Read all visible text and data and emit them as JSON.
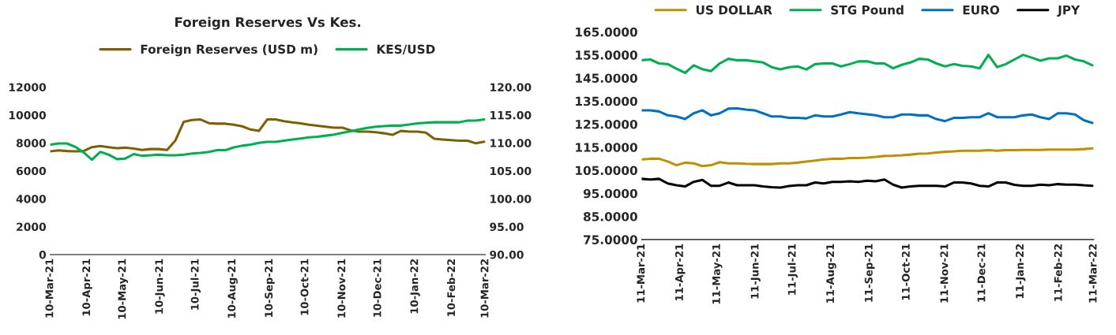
{
  "chart_data": [
    {
      "type": "line",
      "title": "Foreign Reserves Vs Kes.",
      "legend": "top",
      "grid": false,
      "line_style": "solid",
      "marker": "none",
      "x": [
        "2021-03-10",
        "2021-03-17",
        "2021-03-24",
        "2021-03-31",
        "2021-04-07",
        "2021-04-14",
        "2021-04-21",
        "2021-04-28",
        "2021-05-05",
        "2021-05-12",
        "2021-05-19",
        "2021-05-26",
        "2021-06-02",
        "2021-06-09",
        "2021-06-16",
        "2021-06-23",
        "2021-06-30",
        "2021-07-07",
        "2021-07-14",
        "2021-07-21",
        "2021-07-28",
        "2021-08-04",
        "2021-08-11",
        "2021-08-18",
        "2021-08-25",
        "2021-09-01",
        "2021-09-08",
        "2021-09-15",
        "2021-09-22",
        "2021-09-29",
        "2021-10-06",
        "2021-10-13",
        "2021-10-20",
        "2021-10-27",
        "2021-11-03",
        "2021-11-10",
        "2021-11-17",
        "2021-11-24",
        "2021-12-01",
        "2021-12-08",
        "2021-12-15",
        "2021-12-22",
        "2021-12-29",
        "2022-01-05",
        "2022-01-12",
        "2022-01-19",
        "2022-01-26",
        "2022-02-02",
        "2022-02-09",
        "2022-02-16",
        "2022-02-23",
        "2022-03-02",
        "2022-03-09"
      ],
      "series": [
        {
          "name": "Foreign Reserves (USD m)",
          "color": "#7f6000",
          "values": [
            7400,
            7470,
            7420,
            7400,
            7420,
            7700,
            7780,
            7700,
            7620,
            7660,
            7600,
            7500,
            7560,
            7560,
            7500,
            8180,
            9520,
            9640,
            9680,
            9420,
            9380,
            9380,
            9300,
            9190,
            8960,
            8860,
            9680,
            9680,
            9560,
            9470,
            9400,
            9300,
            9230,
            9160,
            9090,
            9090,
            8900,
            8810,
            8810,
            8770,
            8690,
            8580,
            8860,
            8810,
            8810,
            8740,
            8300,
            8250,
            8200,
            8160,
            8160,
            7970,
            8090
          ]
        },
        {
          "name": "KES/USD",
          "color": "#00b050",
          "axis": "y2",
          "values": [
            109.7,
            109.9,
            109.9,
            109.3,
            108.3,
            107.0,
            108.4,
            107.9,
            107.1,
            107.2,
            108.0,
            107.7,
            107.8,
            107.9,
            107.8,
            107.8,
            107.9,
            108.1,
            108.2,
            108.4,
            108.7,
            108.7,
            109.2,
            109.5,
            109.7,
            110.0,
            110.2,
            110.2,
            110.4,
            110.6,
            110.8,
            111.0,
            111.1,
            111.3,
            111.5,
            111.8,
            112.1,
            112.4,
            112.7,
            112.9,
            113.0,
            113.1,
            113.1,
            113.3,
            113.5,
            113.6,
            113.7,
            113.7,
            113.7,
            113.7,
            114.0,
            114.0,
            114.2
          ]
        }
      ],
      "xlim": [
        "2021-03-10",
        "2022-03-10"
      ],
      "xticks": [
        {
          "value": "2021-03-10",
          "label": "10-Mar-21"
        },
        {
          "value": "2021-04-10",
          "label": "10-Apr-21"
        },
        {
          "value": "2021-05-10",
          "label": "10-May-21"
        },
        {
          "value": "2021-06-10",
          "label": "10-Jun-21"
        },
        {
          "value": "2021-07-10",
          "label": "10-Jul-21"
        },
        {
          "value": "2021-08-10",
          "label": "10-Aug-21"
        },
        {
          "value": "2021-09-10",
          "label": "10-Sep-21"
        },
        {
          "value": "2021-10-10",
          "label": "10-Oct-21"
        },
        {
          "value": "2021-11-10",
          "label": "10-Nov-21"
        },
        {
          "value": "2021-12-10",
          "label": "10-Dec-21"
        },
        {
          "value": "2022-01-10",
          "label": "10-Jan-22"
        },
        {
          "value": "2022-02-10",
          "label": "10-Feb-22"
        },
        {
          "value": "2022-03-10",
          "label": "10-Mar-22"
        }
      ],
      "ylim": [
        0,
        12000
      ],
      "yticks": [
        0,
        2000,
        4000,
        6000,
        8000,
        10000,
        12000
      ],
      "y2lim": [
        90,
        120
      ],
      "y2ticks": [
        {
          "value": 90,
          "label": "90.00"
        },
        {
          "value": 95,
          "label": "95.00"
        },
        {
          "value": 100,
          "label": "100.00"
        },
        {
          "value": 105,
          "label": "105.00"
        },
        {
          "value": 110,
          "label": "110.00"
        },
        {
          "value": 115,
          "label": "115.00"
        },
        {
          "value": 120,
          "label": "120.00"
        }
      ]
    },
    {
      "type": "line",
      "legend": "top",
      "grid": false,
      "line_style": "solid",
      "marker": "none",
      "x": [
        "2021-03-11",
        "2021-03-18",
        "2021-03-25",
        "2021-04-01",
        "2021-04-08",
        "2021-04-15",
        "2021-04-22",
        "2021-04-29",
        "2021-05-06",
        "2021-05-13",
        "2021-05-20",
        "2021-05-27",
        "2021-06-03",
        "2021-06-10",
        "2021-06-17",
        "2021-06-24",
        "2021-07-01",
        "2021-07-08",
        "2021-07-15",
        "2021-07-22",
        "2021-07-29",
        "2021-08-05",
        "2021-08-12",
        "2021-08-19",
        "2021-08-26",
        "2021-09-02",
        "2021-09-09",
        "2021-09-16",
        "2021-09-23",
        "2021-09-30",
        "2021-10-07",
        "2021-10-14",
        "2021-10-21",
        "2021-10-28",
        "2021-11-04",
        "2021-11-11",
        "2021-11-18",
        "2021-11-25",
        "2021-12-02",
        "2021-12-09",
        "2021-12-16",
        "2021-12-23",
        "2021-12-30",
        "2022-01-06",
        "2022-01-13",
        "2022-01-20",
        "2022-01-27",
        "2022-02-03",
        "2022-02-10",
        "2022-02-17",
        "2022-02-24",
        "2022-03-03",
        "2022-03-10"
      ],
      "series": [
        {
          "name": "US DOLLAR",
          "color": "#bf9000",
          "values": [
            109.7,
            110.0,
            110.0,
            108.8,
            107.2,
            108.3,
            108.0,
            106.8,
            107.2,
            108.5,
            108.0,
            108.0,
            107.8,
            107.7,
            107.7,
            107.7,
            108.0,
            108.0,
            108.3,
            108.8,
            109.2,
            109.7,
            110.0,
            110.0,
            110.3,
            110.3,
            110.5,
            110.8,
            111.2,
            111.3,
            111.5,
            111.8,
            112.2,
            112.3,
            112.7,
            113.0,
            113.2,
            113.5,
            113.5,
            113.5,
            113.7,
            113.5,
            113.7,
            113.7,
            113.8,
            113.8,
            113.8,
            114.0,
            114.0,
            114.0,
            114.0,
            114.2,
            114.5
          ]
        },
        {
          "name": "STG Pound",
          "color": "#00b050",
          "values": [
            152.7,
            153.0,
            151.3,
            151.0,
            149.0,
            147.2,
            150.5,
            148.8,
            148.0,
            151.3,
            153.3,
            152.7,
            152.7,
            152.2,
            151.7,
            149.7,
            148.7,
            149.7,
            150.0,
            148.7,
            151.0,
            151.3,
            151.3,
            150.0,
            151.0,
            152.2,
            152.2,
            151.3,
            151.3,
            149.2,
            150.7,
            151.7,
            153.3,
            153.0,
            151.3,
            150.0,
            151.0,
            150.3,
            150.0,
            149.2,
            155.0,
            149.7,
            151.0,
            153.0,
            155.0,
            153.8,
            152.5,
            153.5,
            153.5,
            154.7,
            153.0,
            152.2,
            150.5
          ]
        },
        {
          "name": "EURO",
          "color": "#0070c0",
          "values": [
            131.0,
            131.0,
            130.5,
            128.8,
            128.3,
            127.2,
            129.7,
            131.0,
            128.8,
            129.7,
            131.7,
            131.8,
            131.3,
            131.0,
            129.7,
            128.3,
            128.3,
            127.7,
            127.7,
            127.5,
            128.8,
            128.3,
            128.3,
            129.2,
            130.2,
            129.7,
            129.3,
            128.8,
            128.0,
            128.0,
            129.2,
            129.2,
            128.8,
            128.8,
            127.2,
            126.3,
            127.7,
            127.7,
            128.0,
            128.0,
            129.7,
            128.0,
            128.0,
            128.0,
            128.8,
            129.2,
            128.0,
            127.2,
            129.7,
            129.7,
            129.2,
            126.7,
            125.5
          ]
        },
        {
          "name": "JPY",
          "color": "#000000",
          "values": [
            101.3,
            101.0,
            101.3,
            99.3,
            98.5,
            98.0,
            100.0,
            100.8,
            98.3,
            98.3,
            99.7,
            98.5,
            98.5,
            98.5,
            98.0,
            97.7,
            97.5,
            98.2,
            98.5,
            98.5,
            99.7,
            99.3,
            100.0,
            100.0,
            100.2,
            100.0,
            100.5,
            100.2,
            101.0,
            98.8,
            97.5,
            98.0,
            98.3,
            98.3,
            98.3,
            98.0,
            99.7,
            99.7,
            99.3,
            98.3,
            98.0,
            99.7,
            99.7,
            98.7,
            98.3,
            98.3,
            98.8,
            98.5,
            99.0,
            98.8,
            98.8,
            98.5,
            98.3
          ]
        }
      ],
      "xlim": [
        "2021-03-11",
        "2022-03-11"
      ],
      "xticks": [
        {
          "value": "2021-03-11",
          "label": "11-Mar-21"
        },
        {
          "value": "2021-04-11",
          "label": "11-Apr-21"
        },
        {
          "value": "2021-05-11",
          "label": "11-May-21"
        },
        {
          "value": "2021-06-11",
          "label": "11-Jun-21"
        },
        {
          "value": "2021-07-11",
          "label": "11-Jul-21"
        },
        {
          "value": "2021-08-11",
          "label": "11-Aug-21"
        },
        {
          "value": "2021-09-11",
          "label": "11-Sep-21"
        },
        {
          "value": "2021-10-11",
          "label": "11-Oct-21"
        },
        {
          "value": "2021-11-11",
          "label": "11-Nov-21"
        },
        {
          "value": "2021-12-11",
          "label": "11-Dec-21"
        },
        {
          "value": "2022-01-11",
          "label": "11-Jan-22"
        },
        {
          "value": "2022-02-11",
          "label": "11-Feb-22"
        },
        {
          "value": "2022-03-11",
          "label": "11-Mar-22"
        }
      ],
      "ylim": [
        75,
        165
      ],
      "yticks": [
        {
          "value": 75,
          "label": "75.0000"
        },
        {
          "value": 85,
          "label": "85.0000"
        },
        {
          "value": 95,
          "label": "95.0000"
        },
        {
          "value": 105,
          "label": "105.0000"
        },
        {
          "value": 115,
          "label": "115.0000"
        },
        {
          "value": 125,
          "label": "125.0000"
        },
        {
          "value": 135,
          "label": "135.0000"
        },
        {
          "value": 145,
          "label": "145.0000"
        },
        {
          "value": 155,
          "label": "155.0000"
        },
        {
          "value": 165,
          "label": "165.0000"
        }
      ]
    }
  ]
}
